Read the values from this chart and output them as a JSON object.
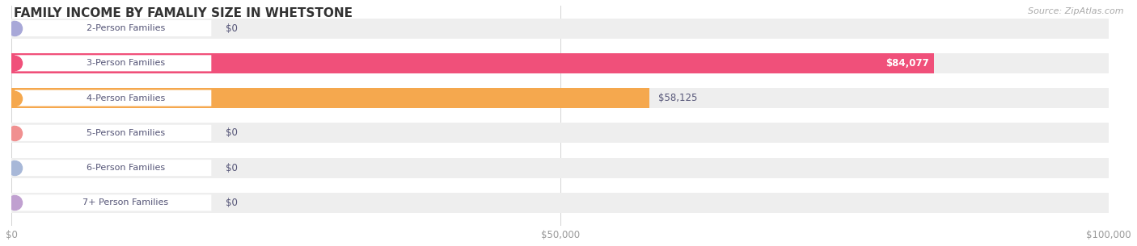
{
  "title": "FAMILY INCOME BY FAMALIY SIZE IN WHETSTONE",
  "source": "Source: ZipAtlas.com",
  "categories": [
    "2-Person Families",
    "3-Person Families",
    "4-Person Families",
    "5-Person Families",
    "6-Person Families",
    "7+ Person Families"
  ],
  "values": [
    0,
    84077,
    58125,
    0,
    0,
    0
  ],
  "bar_colors": [
    "#a8a8d8",
    "#f0507a",
    "#f5a84e",
    "#f09090",
    "#a8b8d8",
    "#c0a0d0"
  ],
  "label_dot_colors": [
    "#a8a8d8",
    "#f0507a",
    "#f5a84e",
    "#f09090",
    "#a8b8d8",
    "#c0a0d0"
  ],
  "value_labels": [
    "$0",
    "$84,077",
    "$58,125",
    "$0",
    "$0",
    "$0"
  ],
  "xlim": [
    0,
    100000
  ],
  "xticks": [
    0,
    50000,
    100000
  ],
  "xtick_labels": [
    "$0",
    "$50,000",
    "$100,000"
  ],
  "figsize": [
    14.06,
    3.05
  ],
  "dpi": 100,
  "capsule_bg": "#eeeeee",
  "row_bg_odd": "#f7f7f7",
  "row_bg_even": "#f0f0f0",
  "label_pill_color": "#ffffff",
  "label_text_color": "#555577",
  "value_text_dark": "#555577",
  "value_text_light": "#ffffff"
}
